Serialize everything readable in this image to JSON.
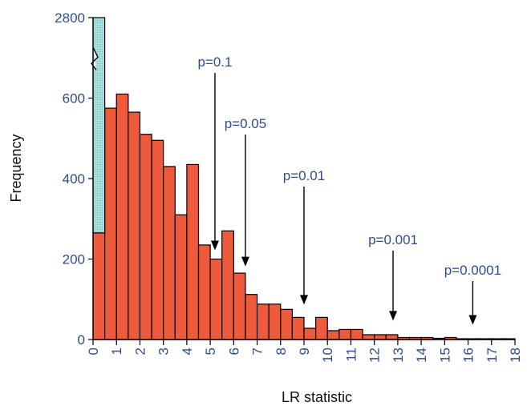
{
  "chart_data": {
    "type": "bar",
    "xlabel": "LR statistic",
    "ylabel": "Frequency",
    "xlim": [
      0,
      18
    ],
    "ylim_display": [
      0,
      800
    ],
    "y_ticks": [
      0,
      200,
      400,
      600
    ],
    "y_break_top_label": "2800",
    "x_ticks": [
      0,
      1,
      2,
      3,
      4,
      5,
      6,
      7,
      8,
      9,
      10,
      11,
      12,
      13,
      14,
      15,
      16,
      17,
      18
    ],
    "bin_width": 0.5,
    "bin_starts": [
      0,
      0.5,
      1,
      1.5,
      2,
      2.5,
      3,
      3.5,
      4,
      4.5,
      5,
      5.5,
      6,
      6.5,
      7,
      7.5,
      8,
      8.5,
      9,
      9.5,
      10,
      10.5,
      11,
      11.5,
      12,
      12.5,
      13,
      13.5,
      14,
      14.5,
      15,
      15.5,
      16,
      16.5,
      17,
      17.5
    ],
    "series": [
      {
        "values": [
          265,
          575,
          610,
          565,
          510,
          495,
          430,
          310,
          435,
          235,
          200,
          270,
          165,
          112,
          88,
          88,
          75,
          55,
          28,
          55,
          22,
          25,
          25,
          12,
          12,
          12,
          5,
          5,
          5,
          3,
          5,
          2,
          2,
          2,
          2,
          2
        ],
        "color": "#ee5a3c"
      },
      {
        "bin_start": 0,
        "value_display": 800,
        "break_at": 600,
        "color": "#a8dede"
      }
    ],
    "annotations": [
      {
        "text": "p=0.1",
        "x": 5.2,
        "y": 210
      },
      {
        "text": "p=0.05",
        "x": 6.5,
        "y": 170
      },
      {
        "text": "p=0.01",
        "x": 9.0,
        "y": 75
      },
      {
        "text": "p=0.001",
        "x": 12.8,
        "y": 35
      },
      {
        "text": "p=0.0001",
        "x": 16.2,
        "y": 25
      }
    ],
    "grid": false
  }
}
